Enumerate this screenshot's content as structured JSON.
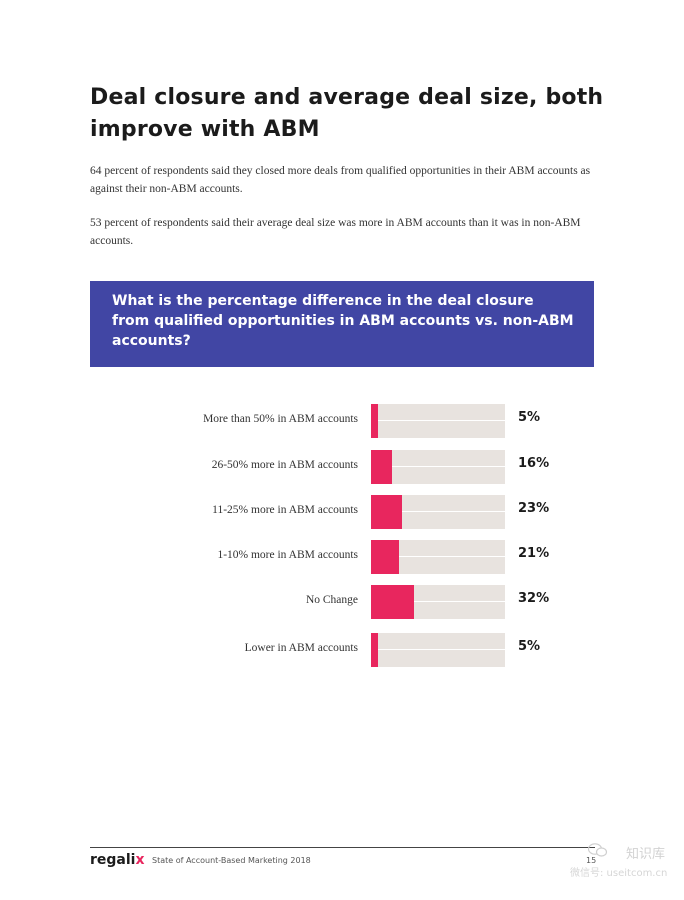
{
  "heading": {
    "line1": "Deal closure and average deal size, both",
    "line2": "improve with ABM"
  },
  "paragraphs": [
    "64 percent of respondents said they closed more deals from qualified opportunities in their ABM accounts as against their non-ABM accounts.",
    "53 percent of respondents said their average deal size was more in ABM accounts than it was in non-ABM accounts."
  ],
  "question": {
    "line1": "What is the percentage difference in the deal closure",
    "line2": "from qualified opportunities in ABM accounts vs. non-ABM",
    "line3": "accounts?"
  },
  "chart_data": {
    "type": "bar",
    "orientation": "horizontal",
    "categories": [
      "More than 50% in ABM accounts",
      "26-50% more in ABM accounts",
      "11-25% more in ABM accounts",
      "1-10% more in ABM accounts",
      "No Change",
      "Lower in ABM accounts"
    ],
    "values": [
      5,
      16,
      23,
      21,
      32,
      5
    ],
    "value_labels": [
      "5%",
      "16%",
      "23%",
      "21%",
      "32%",
      "5%"
    ],
    "xlim": [
      0,
      100
    ],
    "bar_color": "#e8265e",
    "track_color": "#e8e3df"
  },
  "footer": {
    "logo_main": "regali",
    "logo_accent": "x",
    "report_title": "State of Account-Based Marketing 2018",
    "page_number": "15"
  },
  "watermark": {
    "top": "知识库",
    "bottom": "微信号: useitcom.cn"
  },
  "colors": {
    "question_box": "#4146a4",
    "accent": "#e8265e"
  }
}
